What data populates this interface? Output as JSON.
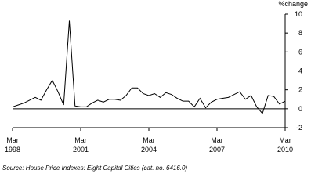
{
  "chart_data": {
    "type": "line",
    "y_axis_label": "%change",
    "source": "Source: House Price Indexes: Eight Capital Cities (cat. no. 6416.0)",
    "categories": [
      "Mar 1998",
      null,
      null,
      null,
      null,
      null,
      null,
      null,
      null,
      null,
      null,
      null,
      "Mar 2001",
      null,
      null,
      null,
      null,
      null,
      null,
      null,
      null,
      null,
      null,
      null,
      "Mar 2004",
      null,
      null,
      null,
      null,
      null,
      null,
      null,
      null,
      null,
      null,
      null,
      "Mar 2007",
      null,
      null,
      null,
      null,
      null,
      null,
      null,
      null,
      null,
      null,
      null,
      "Mar 2010"
    ],
    "series": [
      {
        "color": "#000000",
        "values": [
          0.2,
          0.4,
          0.6,
          0.9,
          1.2,
          0.9,
          2.0,
          3.0,
          1.8,
          0.4,
          9.3,
          0.3,
          0.2,
          0.2,
          0.6,
          0.9,
          0.7,
          1.0,
          1.0,
          0.9,
          1.4,
          2.2,
          2.2,
          1.6,
          1.4,
          1.6,
          1.2,
          1.7,
          1.5,
          1.1,
          0.8,
          0.8,
          0.2,
          1.1,
          0.1,
          0.7,
          1.0,
          1.1,
          1.2,
          1.5,
          1.8,
          1.0,
          1.4,
          0.2,
          -0.5,
          1.4,
          1.3,
          0.5,
          0.8
        ]
      }
    ],
    "ylim": [
      -2,
      10
    ],
    "yticks": [
      -2,
      0,
      2,
      4,
      6,
      8,
      10
    ],
    "y_axis_side": "right",
    "grid": false
  }
}
